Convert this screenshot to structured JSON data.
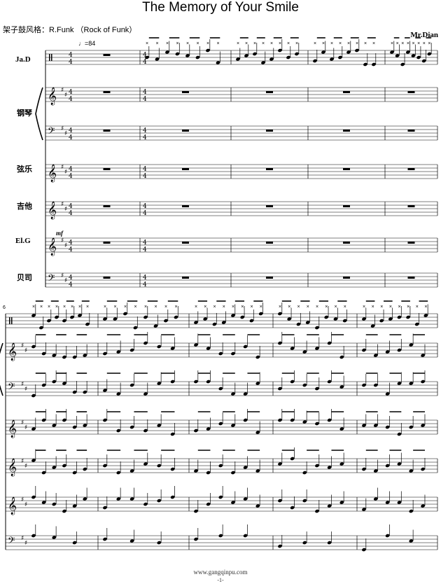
{
  "title": "The Memory of Your Smile",
  "style_note": "架子鼓风格：R.Funk （Rock of Funk）",
  "composer": "Mr.Dian",
  "tempo": "♩=84",
  "time_signature": "4/4",
  "key_signature": "D major (2 sharps)",
  "instruments": [
    {
      "label": "Ja.D"
    },
    {
      "label": "钢琴"
    },
    {
      "label": "弦乐"
    },
    {
      "label": "吉他"
    },
    {
      "label": "El.G"
    },
    {
      "label": "贝司"
    }
  ],
  "dynamic": "mf",
  "measure_number": "6",
  "footer": {
    "site": "www.gangqinpu.com",
    "page": "-1-"
  }
}
